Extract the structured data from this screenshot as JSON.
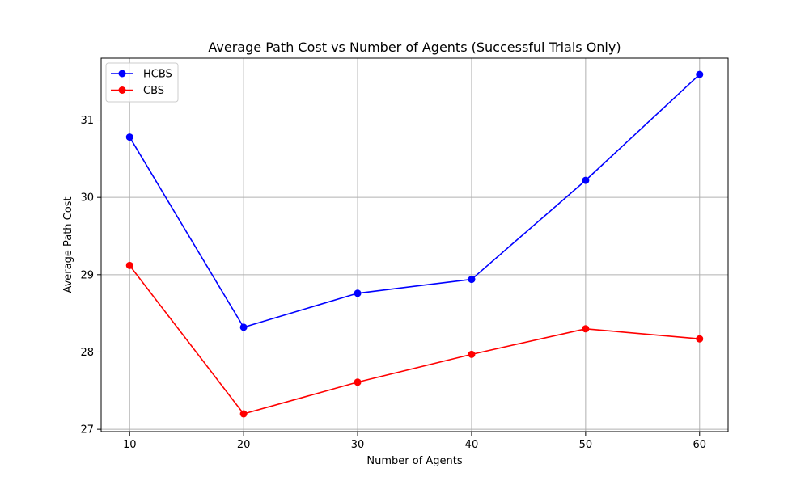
{
  "chart_data": {
    "type": "line",
    "title": "Average Path Cost vs Number of Agents (Successful Trials Only)",
    "xlabel": "Number of Agents",
    "ylabel": "Average Path Cost",
    "x": [
      10,
      20,
      30,
      40,
      50,
      60
    ],
    "xticks": [
      "10",
      "20",
      "30",
      "40",
      "50",
      "60"
    ],
    "yticks": [
      "27",
      "28",
      "29",
      "30",
      "31"
    ],
    "xlim": [
      7.5,
      62.5
    ],
    "ylim": [
      26.97,
      31.8
    ],
    "grid": true,
    "legend_position": "top-left",
    "series": [
      {
        "name": "HCBS",
        "color": "#0000ff",
        "marker": "circle",
        "values": [
          30.78,
          28.32,
          28.76,
          28.94,
          30.22,
          31.59
        ]
      },
      {
        "name": "CBS",
        "color": "#ff0000",
        "marker": "circle",
        "values": [
          29.12,
          27.2,
          27.61,
          27.97,
          28.3,
          28.17
        ]
      }
    ]
  }
}
